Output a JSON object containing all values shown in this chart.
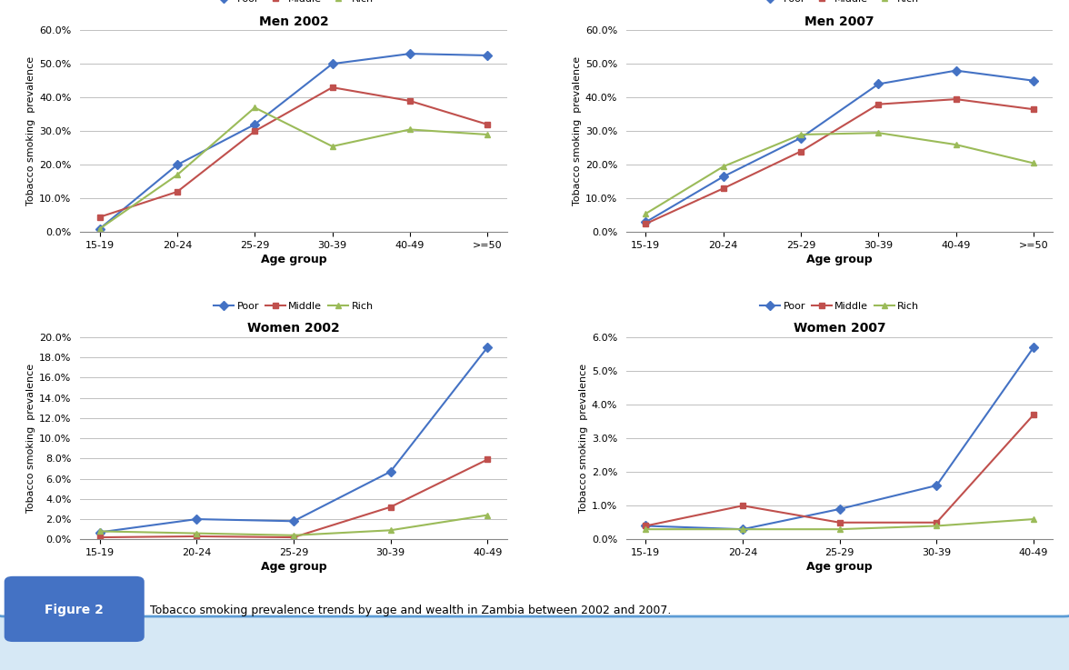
{
  "panels": [
    {
      "title": "Men 2002",
      "age_groups": [
        "15-19",
        "20-24",
        "25-29",
        "30-39",
        "40-49",
        ">=50"
      ],
      "poor": [
        0.01,
        0.2,
        0.32,
        0.5,
        0.53,
        0.525
      ],
      "middle": [
        0.045,
        0.12,
        0.3,
        0.43,
        0.39,
        0.32
      ],
      "rich": [
        0.01,
        0.17,
        0.37,
        0.255,
        0.305,
        0.29
      ],
      "ylim": [
        0,
        0.6
      ],
      "yticks": [
        0.0,
        0.1,
        0.2,
        0.3,
        0.4,
        0.5,
        0.6
      ]
    },
    {
      "title": "Men 2007",
      "age_groups": [
        "15-19",
        "20-24",
        "25-29",
        "30-39",
        "40-49",
        ">=50"
      ],
      "poor": [
        0.03,
        0.165,
        0.28,
        0.44,
        0.48,
        0.45
      ],
      "middle": [
        0.025,
        0.13,
        0.24,
        0.38,
        0.395,
        0.365
      ],
      "rich": [
        0.055,
        0.195,
        0.29,
        0.295,
        0.26,
        0.205
      ],
      "ylim": [
        0,
        0.6
      ],
      "yticks": [
        0.0,
        0.1,
        0.2,
        0.3,
        0.4,
        0.5,
        0.6
      ]
    },
    {
      "title": "Women 2002",
      "age_groups": [
        "15-19",
        "20-24",
        "25-29",
        "30-39",
        "40-49"
      ],
      "poor": [
        0.007,
        0.02,
        0.018,
        0.067,
        0.19
      ],
      "middle": [
        0.002,
        0.003,
        0.002,
        0.032,
        0.079
      ],
      "rich": [
        0.008,
        0.006,
        0.004,
        0.009,
        0.024
      ],
      "ylim": [
        0,
        0.2
      ],
      "yticks": [
        0.0,
        0.02,
        0.04,
        0.06,
        0.08,
        0.1,
        0.12,
        0.14,
        0.16,
        0.18,
        0.2
      ]
    },
    {
      "title": "Women 2007",
      "age_groups": [
        "15-19",
        "20-24",
        "25-29",
        "30-39",
        "40-49"
      ],
      "poor": [
        0.004,
        0.003,
        0.009,
        0.016,
        0.057
      ],
      "middle": [
        0.004,
        0.01,
        0.005,
        0.005,
        0.037
      ],
      "rich": [
        0.003,
        0.003,
        0.003,
        0.004,
        0.006
      ],
      "ylim": [
        0,
        0.06
      ],
      "yticks": [
        0.0,
        0.01,
        0.02,
        0.03,
        0.04,
        0.05,
        0.06
      ]
    }
  ],
  "color_poor": "#4472C4",
  "color_middle": "#C0504D",
  "color_rich": "#9BBB59",
  "ylabel": "Tobacco smoking  prevalence",
  "xlabel": "Age group",
  "figure_caption": "Tobacco smoking prevalence trends by age and wealth in Zambia between 2002 and 2007.",
  "marker_poor": "D",
  "marker_middle": "s",
  "marker_rich": "^",
  "bg_color": "#FFFFFF",
  "outer_bg": "#D6E8F5",
  "border_color": "#5B9BD5",
  "fig2_bg": "#4472C4"
}
